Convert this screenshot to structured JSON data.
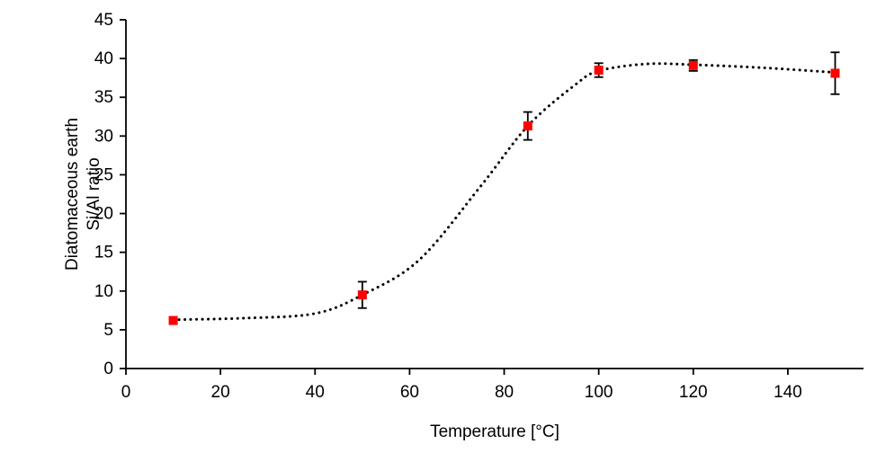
{
  "chart_data": {
    "type": "scatter",
    "title": "",
    "xlabel": "Temperature [°C]",
    "ylabel": "Diatomaceous earth\nSi/Al ratio",
    "xlim": [
      0,
      156
    ],
    "ylim": [
      0,
      45
    ],
    "x_ticks": [
      0,
      20,
      40,
      60,
      80,
      100,
      120,
      140
    ],
    "y_ticks": [
      0,
      5,
      10,
      15,
      20,
      25,
      30,
      35,
      40,
      45
    ],
    "grid": false,
    "legend": false,
    "axis_color": "#000000",
    "tick_font_size": 19,
    "series": [
      {
        "name": "Diatomaceous earth Si/Al ratio",
        "marker": "square",
        "marker_color": "#ff0000",
        "marker_size": 10,
        "error_color": "#000000",
        "x": [
          10,
          50,
          85,
          100,
          120,
          150
        ],
        "y": [
          6.2,
          9.5,
          31.3,
          38.5,
          39.1,
          38.1
        ],
        "y_error": [
          0,
          1.7,
          1.8,
          0.9,
          0.7,
          2.7
        ]
      }
    ],
    "trendline": {
      "style": "dotted",
      "color": "#000000",
      "anchors": [
        [
          10,
          6.3
        ],
        [
          25,
          6.5
        ],
        [
          40,
          7.1
        ],
        [
          50,
          9.5
        ],
        [
          62,
          14.0
        ],
        [
          75,
          23.5
        ],
        [
          85,
          31.3
        ],
        [
          95,
          36.6
        ],
        [
          100,
          38.4
        ],
        [
          110,
          39.3
        ],
        [
          120,
          39.2
        ],
        [
          135,
          38.8
        ],
        [
          150,
          38.2
        ]
      ]
    }
  }
}
